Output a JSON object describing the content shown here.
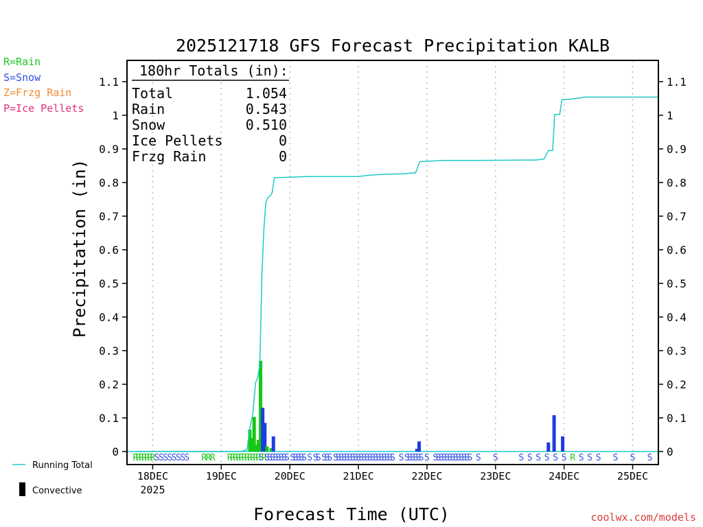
{
  "chart_data": {
    "type": "bar",
    "title": "2025121718 GFS Forecast Precipitation KALB",
    "xlabel": "Forecast Time (UTC)",
    "ylabel": "Precipitation (in)",
    "ylim": [
      0,
      1.15
    ],
    "y_ticks": [
      "0",
      "0.1",
      "0.2",
      "0.3",
      "0.4",
      "0.5",
      "0.6",
      "0.7",
      "0.8",
      "0.9",
      "1",
      "1.1"
    ],
    "x_range_hours": [
      -3,
      183
    ],
    "x_ticks": [
      {
        "label": "18DEC",
        "sub": "2025",
        "hour": 6
      },
      {
        "label": "19DEC",
        "sub": "",
        "hour": 30
      },
      {
        "label": "20DEC",
        "sub": "",
        "hour": 54
      },
      {
        "label": "21DEC",
        "sub": "",
        "hour": 78
      },
      {
        "label": "22DEC",
        "sub": "",
        "hour": 102
      },
      {
        "label": "23DEC",
        "sub": "",
        "hour": 126
      },
      {
        "label": "24DEC",
        "sub": "",
        "hour": 150
      },
      {
        "label": "25DEC",
        "sub": "",
        "hour": 174
      }
    ],
    "totals": {
      "heading": "180hr Totals (in):",
      "rows": [
        {
          "label": "Total",
          "value": "1.054"
        },
        {
          "label": "Rain",
          "value": "0.543"
        },
        {
          "label": "Snow",
          "value": "0.510"
        },
        {
          "label": "Ice Pellets",
          "value": "0"
        },
        {
          "label": "Frzg Rain",
          "value": "0"
        }
      ]
    },
    "ptype_legend": [
      {
        "text": "R=Rain",
        "color": "#22c422"
      },
      {
        "text": "S=Snow",
        "color": "#3050e0"
      },
      {
        "text": "Z=Frzg Rain",
        "color": "#f08a30"
      },
      {
        "text": "P=Ice Pellets",
        "color": "#e0307a"
      }
    ],
    "series_legend": {
      "running_total": "Running Total",
      "convective": "Convective"
    },
    "colors": {
      "rain": "#14c814",
      "snow": "#1f3ce0",
      "total": "#1ec8c8",
      "grid": "#b8b8b8"
    },
    "bars": [
      {
        "hour": 40,
        "value": 0.065,
        "type": "R"
      },
      {
        "hour": 40.75,
        "value": 0.04,
        "type": "R"
      },
      {
        "hour": 41.5,
        "value": 0.103,
        "type": "R"
      },
      {
        "hour": 42.25,
        "value": 0.02,
        "type": "R"
      },
      {
        "hour": 43,
        "value": 0.035,
        "type": "R"
      },
      {
        "hour": 43.75,
        "value": 0.27,
        "type": "R"
      },
      {
        "hour": 44.5,
        "value": 0.13,
        "type": "S"
      },
      {
        "hour": 45.25,
        "value": 0.085,
        "type": "S"
      },
      {
        "hour": 46,
        "value": 0.015,
        "type": "R"
      },
      {
        "hour": 47.5,
        "value": 0.01,
        "type": "R"
      },
      {
        "hour": 48.25,
        "value": 0.045,
        "type": "S"
      },
      {
        "hour": 98.5,
        "value": 0.008,
        "type": "S"
      },
      {
        "hour": 99.25,
        "value": 0.03,
        "type": "S"
      },
      {
        "hour": 144.5,
        "value": 0.027,
        "type": "S"
      },
      {
        "hour": 146.5,
        "value": 0.108,
        "type": "S"
      },
      {
        "hour": 149.5,
        "value": 0.045,
        "type": "S"
      }
    ],
    "running_total": [
      [
        0,
        0
      ],
      [
        37,
        0
      ],
      [
        38,
        0.003
      ],
      [
        39,
        0.005
      ],
      [
        40,
        0.07
      ],
      [
        41,
        0.11
      ],
      [
        42,
        0.205
      ],
      [
        42.75,
        0.22
      ],
      [
        43.5,
        0.26
      ],
      [
        44.2,
        0.52
      ],
      [
        44.9,
        0.66
      ],
      [
        45.6,
        0.74
      ],
      [
        46.3,
        0.755
      ],
      [
        47.1,
        0.76
      ],
      [
        47.8,
        0.77
      ],
      [
        48.6,
        0.815
      ],
      [
        50,
        0.815
      ],
      [
        54,
        0.816
      ],
      [
        60,
        0.818
      ],
      [
        70,
        0.818
      ],
      [
        78,
        0.818
      ],
      [
        80,
        0.82
      ],
      [
        82,
        0.822
      ],
      [
        86,
        0.824
      ],
      [
        94,
        0.826
      ],
      [
        98,
        0.829
      ],
      [
        99.5,
        0.862
      ],
      [
        104,
        0.864
      ],
      [
        108,
        0.866
      ],
      [
        120,
        0.866
      ],
      [
        140,
        0.867
      ],
      [
        143,
        0.87
      ],
      [
        144.5,
        0.895
      ],
      [
        146,
        0.895
      ],
      [
        146.7,
        1.002
      ],
      [
        148.5,
        1.003
      ],
      [
        149.2,
        1.046
      ],
      [
        152,
        1.048
      ],
      [
        154,
        1.05
      ],
      [
        156,
        1.052
      ],
      [
        157,
        1.054
      ],
      [
        183,
        1.054
      ]
    ],
    "ptype_strip": [
      {
        "hour": 0,
        "type": "R"
      },
      {
        "hour": 1,
        "type": "R"
      },
      {
        "hour": 2,
        "type": "R"
      },
      {
        "hour": 3,
        "type": "R"
      },
      {
        "hour": 4,
        "type": "R"
      },
      {
        "hour": 5,
        "type": "R"
      },
      {
        "hour": 6,
        "type": "R"
      },
      {
        "hour": 7.5,
        "type": "S"
      },
      {
        "hour": 9,
        "type": "S"
      },
      {
        "hour": 10.5,
        "type": "S"
      },
      {
        "hour": 12,
        "type": "S"
      },
      {
        "hour": 13.5,
        "type": "S"
      },
      {
        "hour": 15,
        "type": "S"
      },
      {
        "hour": 16.5,
        "type": "S"
      },
      {
        "hour": 18,
        "type": "S"
      },
      {
        "hour": 24,
        "type": "R"
      },
      {
        "hour": 25.5,
        "type": "R"
      },
      {
        "hour": 27,
        "type": "R"
      },
      {
        "hour": 33,
        "type": "R"
      },
      {
        "hour": 34,
        "type": "R"
      },
      {
        "hour": 35,
        "type": "R"
      },
      {
        "hour": 36,
        "type": "R"
      },
      {
        "hour": 37,
        "type": "R"
      },
      {
        "hour": 38,
        "type": "R"
      },
      {
        "hour": 39,
        "type": "R"
      },
      {
        "hour": 40,
        "type": "R"
      },
      {
        "hour": 41,
        "type": "R"
      },
      {
        "hour": 42,
        "type": "R"
      },
      {
        "hour": 43,
        "type": "R"
      },
      {
        "hour": 44,
        "type": "S"
      },
      {
        "hour": 45,
        "type": "R"
      },
      {
        "hour": 46,
        "type": "S"
      },
      {
        "hour": 47,
        "type": "S"
      },
      {
        "hour": 48,
        "type": "S"
      },
      {
        "hour": 49,
        "type": "S"
      },
      {
        "hour": 50,
        "type": "S"
      },
      {
        "hour": 51,
        "type": "S"
      },
      {
        "hour": 52,
        "type": "S"
      },
      {
        "hour": 53,
        "type": "S"
      },
      {
        "hour": 55,
        "type": "S"
      },
      {
        "hour": 56,
        "type": "S"
      },
      {
        "hour": 57,
        "type": "S"
      },
      {
        "hour": 58,
        "type": "S"
      },
      {
        "hour": 59,
        "type": "S"
      },
      {
        "hour": 61,
        "type": "S"
      },
      {
        "hour": 63,
        "type": "S"
      },
      {
        "hour": 64,
        "type": "S"
      },
      {
        "hour": 66,
        "type": "S"
      },
      {
        "hour": 67,
        "type": "S"
      },
      {
        "hour": 68,
        "type": "S"
      },
      {
        "hour": 70,
        "type": "S"
      },
      {
        "hour": 71,
        "type": "S"
      },
      {
        "hour": 72,
        "type": "S"
      },
      {
        "hour": 73,
        "type": "S"
      },
      {
        "hour": 74,
        "type": "S"
      },
      {
        "hour": 75,
        "type": "S"
      },
      {
        "hour": 76,
        "type": "S"
      },
      {
        "hour": 77,
        "type": "S"
      },
      {
        "hour": 78,
        "type": "S"
      },
      {
        "hour": 79,
        "type": "S"
      },
      {
        "hour": 80,
        "type": "S"
      },
      {
        "hour": 81,
        "type": "S"
      },
      {
        "hour": 82,
        "type": "S"
      },
      {
        "hour": 83,
        "type": "S"
      },
      {
        "hour": 84,
        "type": "S"
      },
      {
        "hour": 85,
        "type": "S"
      },
      {
        "hour": 86,
        "type": "S"
      },
      {
        "hour": 87,
        "type": "S"
      },
      {
        "hour": 88,
        "type": "S"
      },
      {
        "hour": 89,
        "type": "S"
      },
      {
        "hour": 90,
        "type": "S"
      },
      {
        "hour": 93,
        "type": "S"
      },
      {
        "hour": 95,
        "type": "S"
      },
      {
        "hour": 96,
        "type": "S"
      },
      {
        "hour": 97,
        "type": "S"
      },
      {
        "hour": 98,
        "type": "S"
      },
      {
        "hour": 99,
        "type": "S"
      },
      {
        "hour": 100,
        "type": "S"
      },
      {
        "hour": 102,
        "type": "S"
      },
      {
        "hour": 105,
        "type": "S"
      },
      {
        "hour": 106,
        "type": "S"
      },
      {
        "hour": 107,
        "type": "S"
      },
      {
        "hour": 108,
        "type": "S"
      },
      {
        "hour": 109,
        "type": "S"
      },
      {
        "hour": 110,
        "type": "S"
      },
      {
        "hour": 111,
        "type": "S"
      },
      {
        "hour": 112,
        "type": "S"
      },
      {
        "hour": 113,
        "type": "S"
      },
      {
        "hour": 114,
        "type": "S"
      },
      {
        "hour": 115,
        "type": "S"
      },
      {
        "hour": 116,
        "type": "S"
      },
      {
        "hour": 117,
        "type": "S"
      },
      {
        "hour": 120,
        "type": "S"
      },
      {
        "hour": 126,
        "type": "S"
      },
      {
        "hour": 135,
        "type": "S"
      },
      {
        "hour": 138,
        "type": "S"
      },
      {
        "hour": 141,
        "type": "S"
      },
      {
        "hour": 144,
        "type": "S"
      },
      {
        "hour": 147,
        "type": "S"
      },
      {
        "hour": 150,
        "type": "S"
      },
      {
        "hour": 153,
        "type": "R"
      },
      {
        "hour": 156,
        "type": "S"
      },
      {
        "hour": 159,
        "type": "S"
      },
      {
        "hour": 162,
        "type": "S"
      },
      {
        "hour": 168,
        "type": "S"
      },
      {
        "hour": 174,
        "type": "S"
      },
      {
        "hour": 180,
        "type": "S"
      }
    ]
  },
  "credit": "coolwx.com/models"
}
